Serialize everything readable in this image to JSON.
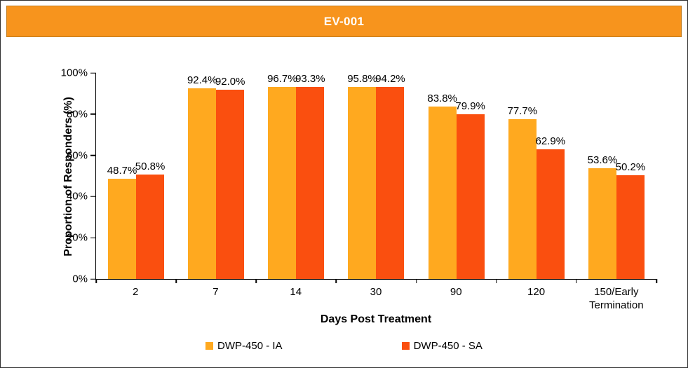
{
  "header": {
    "title": "EV-001"
  },
  "colors": {
    "band": "#F7941D",
    "series_ia": "#FFA91F",
    "series_sa": "#FA4F0F"
  },
  "chart_data": {
    "type": "bar",
    "title": "EV-001",
    "xlabel": "Days Post Treatment",
    "ylabel": "Proportion of Responders (%)",
    "categories": [
      "2",
      "7",
      "14",
      "30",
      "90",
      "120",
      "150/Early Termination"
    ],
    "series": [
      {
        "name": "DWP-450 - IA",
        "color": "#FFA91F",
        "values": [
          48.7,
          92.4,
          96.7,
          95.8,
          83.8,
          77.7,
          53.6
        ]
      },
      {
        "name": "DWP-450 - SA",
        "color": "#FA4F0F",
        "values": [
          50.8,
          92.0,
          93.3,
          94.2,
          79.9,
          62.9,
          50.2
        ]
      }
    ],
    "ylim": [
      0,
      100
    ],
    "yticks": [
      "0%",
      "20%",
      "40%",
      "60%",
      "80%",
      "100%"
    ],
    "value_suffix": "%",
    "grid": false,
    "legend_position": "bottom"
  }
}
